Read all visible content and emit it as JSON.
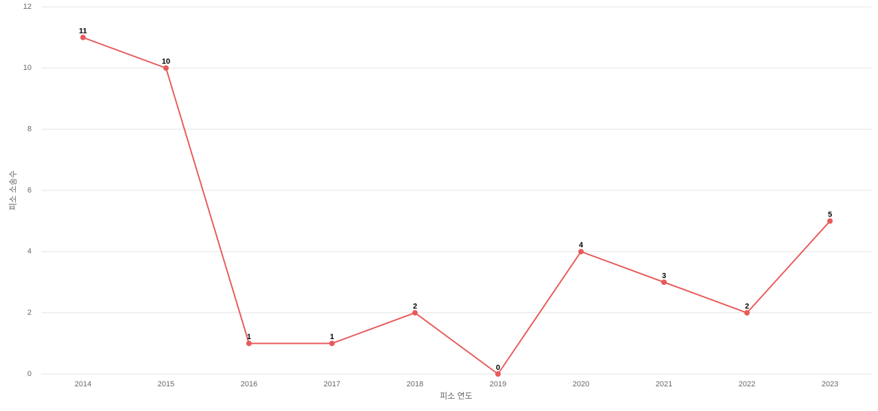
{
  "chart_data": {
    "type": "line",
    "x_label": "피소 연도",
    "y_label": "피소 소송수",
    "categories": [
      "2014",
      "2015",
      "2016",
      "2017",
      "2018",
      "2019",
      "2020",
      "2021",
      "2022",
      "2023"
    ],
    "values": [
      11,
      10,
      1,
      1,
      2,
      0,
      4,
      3,
      2,
      5
    ],
    "color": "#e85a5a",
    "ylim": [
      0,
      12
    ],
    "yticks": [
      0,
      2,
      4,
      6,
      8,
      10,
      12
    ],
    "grid": true
  }
}
